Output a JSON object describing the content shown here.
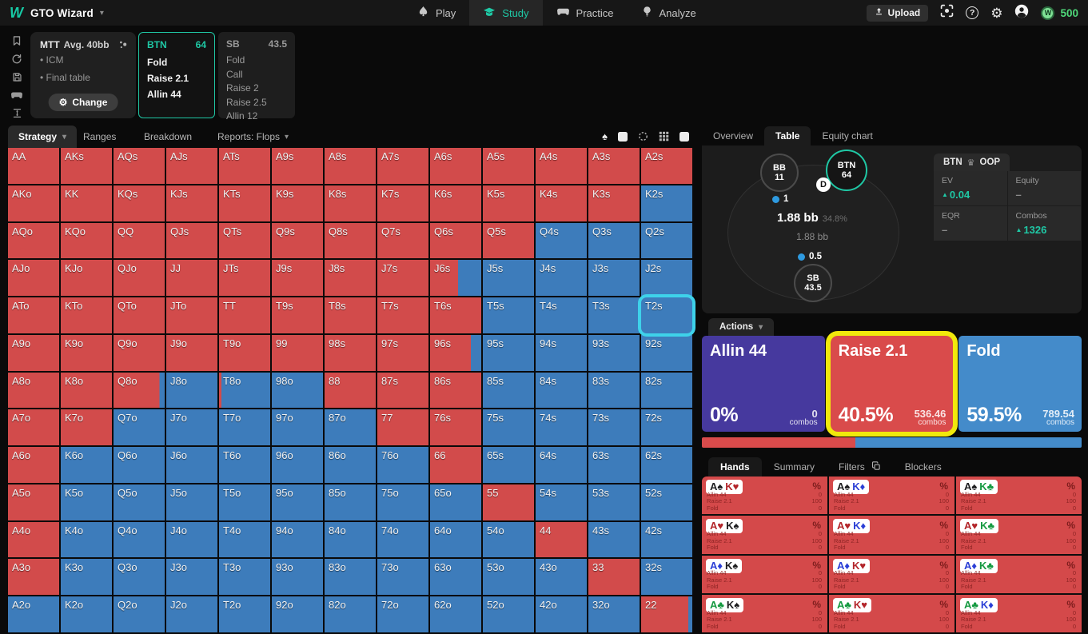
{
  "glyphs": {
    "caret": "▾",
    "gear": "⚙",
    "crown": "♛",
    "up_arrow": "▲",
    "bullet": "•",
    "help": "?",
    "coin_letter": "W",
    "dealer": "D"
  },
  "topbar": {
    "logo_letter": "W",
    "brand": "GTO Wizard",
    "nav": [
      {
        "label": "Play"
      },
      {
        "label": "Study",
        "active": true
      },
      {
        "label": "Practice"
      },
      {
        "label": "Analyze"
      }
    ],
    "upload_label": "Upload",
    "credits": "500"
  },
  "config": {
    "title": "MTT",
    "subtitle": "Avg. 40bb",
    "bullets": [
      "ICM",
      "Final table"
    ],
    "change_label": "Change"
  },
  "spot_panels": [
    {
      "pos": "BTN",
      "stack": "64",
      "actions": [
        "Fold",
        "Raise 2.1",
        "Allin 44"
      ]
    },
    {
      "pos": "SB",
      "stack": "43.5",
      "actions": [
        "Fold",
        "Call",
        "Raise 2",
        "Raise 2.5",
        "Allin 12"
      ]
    }
  ],
  "strategy_tabs": {
    "strategy": "Strategy",
    "ranges": "Ranges",
    "breakdown": "Breakdown",
    "reports": "Reports: Flops"
  },
  "matrix": {
    "highlight": "T2s",
    "colors": {
      "raise": "#d24b4b",
      "fold": "#3d7cbb"
    },
    "rows": [
      [
        [
          "AA",
          1
        ],
        [
          "AKs",
          1
        ],
        [
          "AQs",
          1
        ],
        [
          "AJs",
          1
        ],
        [
          "ATs",
          1
        ],
        [
          "A9s",
          1
        ],
        [
          "A8s",
          1
        ],
        [
          "A7s",
          1
        ],
        [
          "A6s",
          1
        ],
        [
          "A5s",
          1
        ],
        [
          "A4s",
          1
        ],
        [
          "A3s",
          1
        ],
        [
          "A2s",
          1
        ]
      ],
      [
        [
          "AKo",
          1
        ],
        [
          "KK",
          1
        ],
        [
          "KQs",
          1
        ],
        [
          "KJs",
          1
        ],
        [
          "KTs",
          1
        ],
        [
          "K9s",
          1
        ],
        [
          "K8s",
          1
        ],
        [
          "K7s",
          1
        ],
        [
          "K6s",
          1
        ],
        [
          "K5s",
          1
        ],
        [
          "K4s",
          1
        ],
        [
          "K3s",
          1
        ],
        [
          "K2s",
          0
        ]
      ],
      [
        [
          "AQo",
          1
        ],
        [
          "KQo",
          1
        ],
        [
          "QQ",
          1
        ],
        [
          "QJs",
          1
        ],
        [
          "QTs",
          1
        ],
        [
          "Q9s",
          1
        ],
        [
          "Q8s",
          1
        ],
        [
          "Q7s",
          1
        ],
        [
          "Q6s",
          1
        ],
        [
          "Q5s",
          1
        ],
        [
          "Q4s",
          0
        ],
        [
          "Q3s",
          0
        ],
        [
          "Q2s",
          0
        ]
      ],
      [
        [
          "AJo",
          1
        ],
        [
          "KJo",
          1
        ],
        [
          "QJo",
          1
        ],
        [
          "JJ",
          1
        ],
        [
          "JTs",
          1
        ],
        [
          "J9s",
          1
        ],
        [
          "J8s",
          1
        ],
        [
          "J7s",
          1
        ],
        [
          "J6s",
          0.55
        ],
        [
          "J5s",
          0
        ],
        [
          "J4s",
          0
        ],
        [
          "J3s",
          0
        ],
        [
          "J2s",
          0
        ]
      ],
      [
        [
          "ATo",
          1
        ],
        [
          "KTo",
          1
        ],
        [
          "QTo",
          1
        ],
        [
          "JTo",
          1
        ],
        [
          "TT",
          1
        ],
        [
          "T9s",
          1
        ],
        [
          "T8s",
          1
        ],
        [
          "T7s",
          1
        ],
        [
          "T6s",
          1
        ],
        [
          "T5s",
          0
        ],
        [
          "T4s",
          0
        ],
        [
          "T3s",
          0
        ],
        [
          "T2s",
          0
        ]
      ],
      [
        [
          "A9o",
          1
        ],
        [
          "K9o",
          1
        ],
        [
          "Q9o",
          1
        ],
        [
          "J9o",
          1
        ],
        [
          "T9o",
          1
        ],
        [
          "99",
          1
        ],
        [
          "98s",
          1
        ],
        [
          "97s",
          1
        ],
        [
          "96s",
          0.8
        ],
        [
          "95s",
          0
        ],
        [
          "94s",
          0
        ],
        [
          "93s",
          0
        ],
        [
          "92s",
          0
        ]
      ],
      [
        [
          "A8o",
          1
        ],
        [
          "K8o",
          1
        ],
        [
          "Q8o",
          0.9
        ],
        [
          "J8o",
          0
        ],
        [
          "T8o",
          0.05
        ],
        [
          "98o",
          0
        ],
        [
          "88",
          1
        ],
        [
          "87s",
          1
        ],
        [
          "86s",
          1
        ],
        [
          "85s",
          0
        ],
        [
          "84s",
          0
        ],
        [
          "83s",
          0
        ],
        [
          "82s",
          0
        ]
      ],
      [
        [
          "A7o",
          1
        ],
        [
          "K7o",
          1
        ],
        [
          "Q7o",
          0
        ],
        [
          "J7o",
          0
        ],
        [
          "T7o",
          0
        ],
        [
          "97o",
          0
        ],
        [
          "87o",
          0
        ],
        [
          "77",
          1
        ],
        [
          "76s",
          1
        ],
        [
          "75s",
          0
        ],
        [
          "74s",
          0
        ],
        [
          "73s",
          0
        ],
        [
          "72s",
          0
        ]
      ],
      [
        [
          "A6o",
          1
        ],
        [
          "K6o",
          0
        ],
        [
          "Q6o",
          0
        ],
        [
          "J6o",
          0
        ],
        [
          "T6o",
          0
        ],
        [
          "96o",
          0
        ],
        [
          "86o",
          0
        ],
        [
          "76o",
          0
        ],
        [
          "66",
          1
        ],
        [
          "65s",
          0
        ],
        [
          "64s",
          0
        ],
        [
          "63s",
          0
        ],
        [
          "62s",
          0
        ]
      ],
      [
        [
          "A5o",
          1
        ],
        [
          "K5o",
          0
        ],
        [
          "Q5o",
          0
        ],
        [
          "J5o",
          0
        ],
        [
          "T5o",
          0
        ],
        [
          "95o",
          0
        ],
        [
          "85o",
          0
        ],
        [
          "75o",
          0
        ],
        [
          "65o",
          0
        ],
        [
          "55",
          1
        ],
        [
          "54s",
          0
        ],
        [
          "53s",
          0
        ],
        [
          "52s",
          0
        ]
      ],
      [
        [
          "A4o",
          1
        ],
        [
          "K4o",
          0
        ],
        [
          "Q4o",
          0
        ],
        [
          "J4o",
          0
        ],
        [
          "T4o",
          0
        ],
        [
          "94o",
          0
        ],
        [
          "84o",
          0
        ],
        [
          "74o",
          0
        ],
        [
          "64o",
          0
        ],
        [
          "54o",
          0
        ],
        [
          "44",
          1
        ],
        [
          "43s",
          0
        ],
        [
          "42s",
          0
        ]
      ],
      [
        [
          "A3o",
          1
        ],
        [
          "K3o",
          0
        ],
        [
          "Q3o",
          0
        ],
        [
          "J3o",
          0
        ],
        [
          "T3o",
          0
        ],
        [
          "93o",
          0
        ],
        [
          "83o",
          0
        ],
        [
          "73o",
          0
        ],
        [
          "63o",
          0
        ],
        [
          "53o",
          0
        ],
        [
          "43o",
          0
        ],
        [
          "33",
          1
        ],
        [
          "32s",
          0
        ]
      ],
      [
        [
          "A2o",
          0
        ],
        [
          "K2o",
          0
        ],
        [
          "Q2o",
          0
        ],
        [
          "J2o",
          0
        ],
        [
          "T2o",
          0
        ],
        [
          "92o",
          0
        ],
        [
          "82o",
          0
        ],
        [
          "72o",
          0
        ],
        [
          "62o",
          0
        ],
        [
          "52o",
          0
        ],
        [
          "42o",
          0
        ],
        [
          "32o",
          0
        ],
        [
          "22",
          0.92
        ]
      ]
    ]
  },
  "right_panel": {
    "tabs": [
      {
        "label": "Overview"
      },
      {
        "label": "Table",
        "active": true
      },
      {
        "label": "Equity chart"
      }
    ],
    "table": {
      "players": [
        {
          "pos": "BB",
          "stack": "11"
        },
        {
          "pos": "BTN",
          "stack": "64"
        },
        {
          "pos": "SB",
          "stack": "43.5"
        }
      ],
      "bets": [
        {
          "amount": "1"
        },
        {
          "amount": "0.5"
        }
      ],
      "pot": "1.88 bb",
      "pot_pct": "34.8%",
      "pot_sub": "1.88 bb"
    },
    "stats": {
      "pos": "BTN",
      "oop": "OOP",
      "cells": [
        {
          "label": "EV",
          "value": "0.04",
          "up": true
        },
        {
          "label": "Equity",
          "value": "–"
        },
        {
          "label": "EQR",
          "value": "–"
        },
        {
          "label": "Combos",
          "value": "1326",
          "up": true
        }
      ]
    },
    "actions_label": "Actions",
    "combos_word": "combos",
    "action_boxes": [
      {
        "name": "Allin 44",
        "pct": "0%",
        "combos": "0",
        "color": "#46399e"
      },
      {
        "name": "Raise 2.1",
        "pct": "40.5%",
        "combos": "536.46",
        "color": "#d94b4b",
        "highlighted": true
      },
      {
        "name": "Fold",
        "pct": "59.5%",
        "combos": "789.54",
        "color": "#448bca"
      }
    ],
    "strategy_bar": [
      {
        "color": "#d94b4b",
        "width": 40.5
      },
      {
        "color": "#448bca",
        "width": 59.5
      }
    ],
    "hands_tabs": [
      {
        "label": "Hands",
        "active": true
      },
      {
        "label": "Summary"
      },
      {
        "label": "Filters",
        "icon": "copy-icon"
      },
      {
        "label": "Blockers"
      }
    ],
    "percent_header": "%",
    "hand_actions": [
      "Allin 44",
      "Raise 2.1",
      "Fold"
    ],
    "suits": {
      "spade": {
        "glyph": "♠",
        "color": "#1d1d1f"
      },
      "heart": {
        "glyph": "♥",
        "color": "#b3252a"
      },
      "diamond": {
        "glyph": "♦",
        "color": "#2b3fd6"
      },
      "club": {
        "glyph": "♣",
        "color": "#169a41"
      }
    },
    "hands": [
      {
        "cards": [
          {
            "rank": "A",
            "suit": "spade"
          },
          {
            "rank": "K",
            "suit": "heart"
          }
        ],
        "values": [
          "0",
          "100",
          "0"
        ]
      },
      {
        "cards": [
          {
            "rank": "A",
            "suit": "spade"
          },
          {
            "rank": "K",
            "suit": "diamond"
          }
        ],
        "values": [
          "0",
          "100",
          "0"
        ]
      },
      {
        "cards": [
          {
            "rank": "A",
            "suit": "spade"
          },
          {
            "rank": "K",
            "suit": "club"
          }
        ],
        "values": [
          "0",
          "100",
          "0"
        ]
      },
      {
        "cards": [
          {
            "rank": "A",
            "suit": "heart"
          },
          {
            "rank": "K",
            "suit": "spade"
          }
        ],
        "values": [
          "0",
          "100",
          "0"
        ]
      },
      {
        "cards": [
          {
            "rank": "A",
            "suit": "heart"
          },
          {
            "rank": "K",
            "suit": "diamond"
          }
        ],
        "values": [
          "0",
          "100",
          "0"
        ]
      },
      {
        "cards": [
          {
            "rank": "A",
            "suit": "heart"
          },
          {
            "rank": "K",
            "suit": "club"
          }
        ],
        "values": [
          "0",
          "100",
          "0"
        ]
      },
      {
        "cards": [
          {
            "rank": "A",
            "suit": "diamond"
          },
          {
            "rank": "K",
            "suit": "spade"
          }
        ],
        "values": [
          "0",
          "100",
          "0"
        ]
      },
      {
        "cards": [
          {
            "rank": "A",
            "suit": "diamond"
          },
          {
            "rank": "K",
            "suit": "heart"
          }
        ],
        "values": [
          "0",
          "100",
          "0"
        ]
      },
      {
        "cards": [
          {
            "rank": "A",
            "suit": "diamond"
          },
          {
            "rank": "K",
            "suit": "club"
          }
        ],
        "values": [
          "0",
          "100",
          "0"
        ]
      },
      {
        "cards": [
          {
            "rank": "A",
            "suit": "club"
          },
          {
            "rank": "K",
            "suit": "spade"
          }
        ],
        "values": [
          "0",
          "100",
          "0"
        ]
      },
      {
        "cards": [
          {
            "rank": "A",
            "suit": "club"
          },
          {
            "rank": "K",
            "suit": "heart"
          }
        ],
        "values": [
          "0",
          "100",
          "0"
        ]
      },
      {
        "cards": [
          {
            "rank": "A",
            "suit": "club"
          },
          {
            "rank": "K",
            "suit": "diamond"
          }
        ],
        "values": [
          "0",
          "100",
          "0"
        ]
      }
    ]
  }
}
